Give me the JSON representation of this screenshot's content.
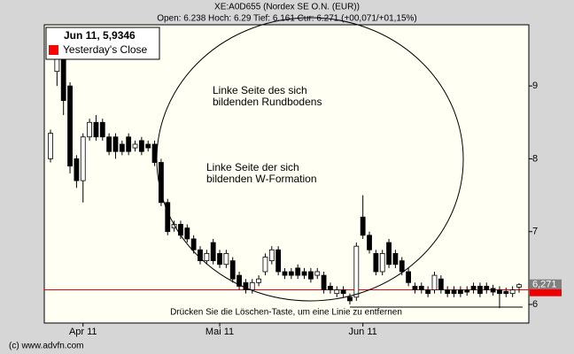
{
  "chart_data": {
    "type": "candlestick",
    "title": "XE:A0D655 (Nordex SE O.N. (EUR))",
    "subtitle": "Open: 6.238 Hoch: 6.29 Tief: 6.161 Cur: 6.271 (+00,071/+01,15%)",
    "categories": [
      null,
      null,
      null,
      null,
      null,
      "Apr 11",
      null,
      null,
      null,
      null,
      null,
      null,
      null,
      null,
      null,
      null,
      null,
      null,
      null,
      null,
      null,
      null,
      null,
      null,
      null,
      null,
      "Mai 11",
      null,
      null,
      null,
      null,
      null,
      null,
      null,
      null,
      null,
      null,
      null,
      null,
      null,
      null,
      null,
      null,
      null,
      null,
      null,
      null,
      null,
      "Jun 11",
      null,
      null,
      null,
      null,
      null,
      null,
      null,
      null,
      null,
      null,
      null,
      null,
      null,
      null,
      null,
      null,
      null,
      null,
      null,
      null,
      null,
      null,
      null,
      null
    ],
    "open": [
      8.0,
      9.2,
      9.4,
      9.0,
      8.0,
      7.7,
      8.3,
      8.5,
      8.5,
      8.3,
      8.3,
      8.2,
      8.3,
      8.15,
      8.25,
      8.2,
      8.2,
      7.95,
      7.4,
      7.05,
      7.1,
      7.05,
      6.9,
      6.75,
      6.6,
      6.85,
      6.7,
      6.55,
      6.6,
      6.4,
      6.3,
      6.2,
      6.3,
      6.45,
      6.6,
      6.75,
      6.45,
      6.45,
      6.5,
      6.45,
      6.45,
      6.4,
      6.4,
      6.25,
      6.15,
      6.2,
      6.1,
      6.1,
      7.2,
      6.95,
      6.7,
      6.45,
      6.85,
      6.7,
      6.6,
      6.45,
      6.25,
      6.25,
      6.2,
      6.2,
      6.35,
      6.2,
      6.2,
      6.2,
      6.2,
      6.25,
      6.25,
      6.25,
      6.22,
      6.2,
      6.18,
      6.15,
      6.238
    ],
    "high": [
      8.4,
      9.7,
      9.5,
      9.05,
      8.05,
      8.35,
      8.55,
      8.6,
      8.55,
      8.35,
      8.35,
      8.25,
      8.35,
      8.25,
      8.3,
      8.25,
      8.25,
      8.0,
      7.45,
      7.15,
      7.15,
      7.1,
      6.95,
      6.8,
      6.75,
      6.9,
      6.75,
      6.75,
      6.65,
      6.45,
      6.35,
      6.35,
      6.4,
      6.7,
      6.8,
      6.8,
      6.5,
      6.5,
      6.55,
      6.5,
      6.5,
      6.5,
      6.45,
      6.3,
      6.25,
      6.25,
      6.15,
      6.85,
      7.5,
      7.0,
      6.75,
      6.75,
      6.9,
      6.75,
      6.65,
      6.5,
      6.3,
      6.3,
      6.25,
      6.45,
      6.4,
      6.25,
      6.25,
      6.25,
      6.25,
      6.3,
      6.3,
      6.3,
      6.27,
      6.25,
      6.23,
      6.25,
      6.29
    ],
    "low": [
      7.95,
      9.0,
      8.6,
      7.8,
      7.6,
      7.4,
      8.25,
      8.25,
      8.25,
      8.05,
      8.0,
      8.05,
      8.05,
      8.1,
      8.05,
      8.1,
      7.9,
      7.35,
      6.95,
      7.0,
      6.9,
      6.85,
      6.7,
      6.55,
      6.55,
      6.55,
      6.5,
      6.5,
      6.3,
      6.2,
      6.15,
      6.15,
      6.25,
      6.4,
      6.55,
      6.4,
      6.35,
      6.35,
      6.35,
      6.35,
      6.3,
      6.35,
      6.15,
      6.15,
      6.1,
      6.1,
      6.0,
      6.05,
      6.9,
      6.7,
      6.4,
      6.4,
      6.5,
      6.5,
      6.4,
      6.25,
      6.15,
      6.15,
      6.1,
      6.15,
      6.15,
      6.1,
      6.1,
      6.1,
      6.12,
      6.15,
      6.1,
      6.15,
      6.12,
      5.95,
      6.1,
      6.1,
      6.161
    ],
    "close": [
      8.35,
      9.5,
      8.8,
      7.9,
      7.7,
      8.3,
      8.5,
      8.3,
      8.3,
      8.1,
      8.1,
      8.1,
      8.1,
      8.2,
      8.1,
      8.15,
      7.95,
      7.4,
      7.0,
      7.1,
      6.95,
      6.9,
      6.75,
      6.6,
      6.7,
      6.6,
      6.55,
      6.7,
      6.35,
      6.25,
      6.2,
      6.3,
      6.35,
      6.65,
      6.75,
      6.45,
      6.4,
      6.4,
      6.4,
      6.4,
      6.35,
      6.45,
      6.2,
      6.2,
      6.2,
      6.15,
      6.05,
      6.8,
      6.95,
      6.75,
      6.45,
      6.7,
      6.55,
      6.55,
      6.45,
      6.3,
      6.2,
      6.2,
      6.15,
      6.4,
      6.2,
      6.15,
      6.15,
      6.15,
      6.17,
      6.2,
      6.15,
      6.2,
      6.17,
      6.15,
      6.15,
      6.2,
      6.271
    ],
    "up_color": "#ffffff",
    "down_color": "#000000",
    "ylim": [
      5.745,
      9.84
    ],
    "yticks": [
      6,
      7,
      8,
      9
    ],
    "reference_line": {
      "value": 6.2,
      "color": "#ee0000"
    },
    "current": {
      "value": 6.271,
      "label": "6,271"
    },
    "legend": {
      "title": "Jun 11, 5,9346",
      "entries": [
        {
          "name": "Yesterday's Close",
          "color": "#ff0000"
        }
      ]
    },
    "annotations": [
      {
        "text": "Linke Seite des sich"
      },
      {
        "text": "bildenden Rundbodens"
      },
      {
        "text": "Linke Seite der sich"
      },
      {
        "text": "bildenden W-Formation"
      },
      {
        "text": "Drücken Sie die Löschen-Taste, um eine Linie zu entfernen"
      }
    ],
    "copyright": "(c) www.advfn.com"
  }
}
